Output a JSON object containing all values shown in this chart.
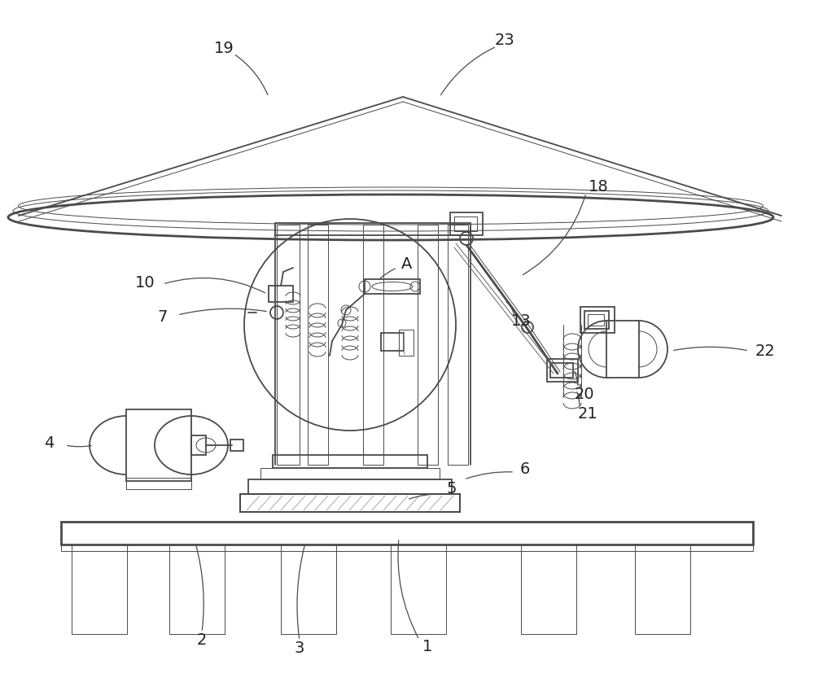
{
  "bg_color": "#ffffff",
  "lc": "#4a4a4a",
  "lw": 1.3,
  "lwt": 0.7,
  "lwk": 2.0,
  "label_fs": 14
}
